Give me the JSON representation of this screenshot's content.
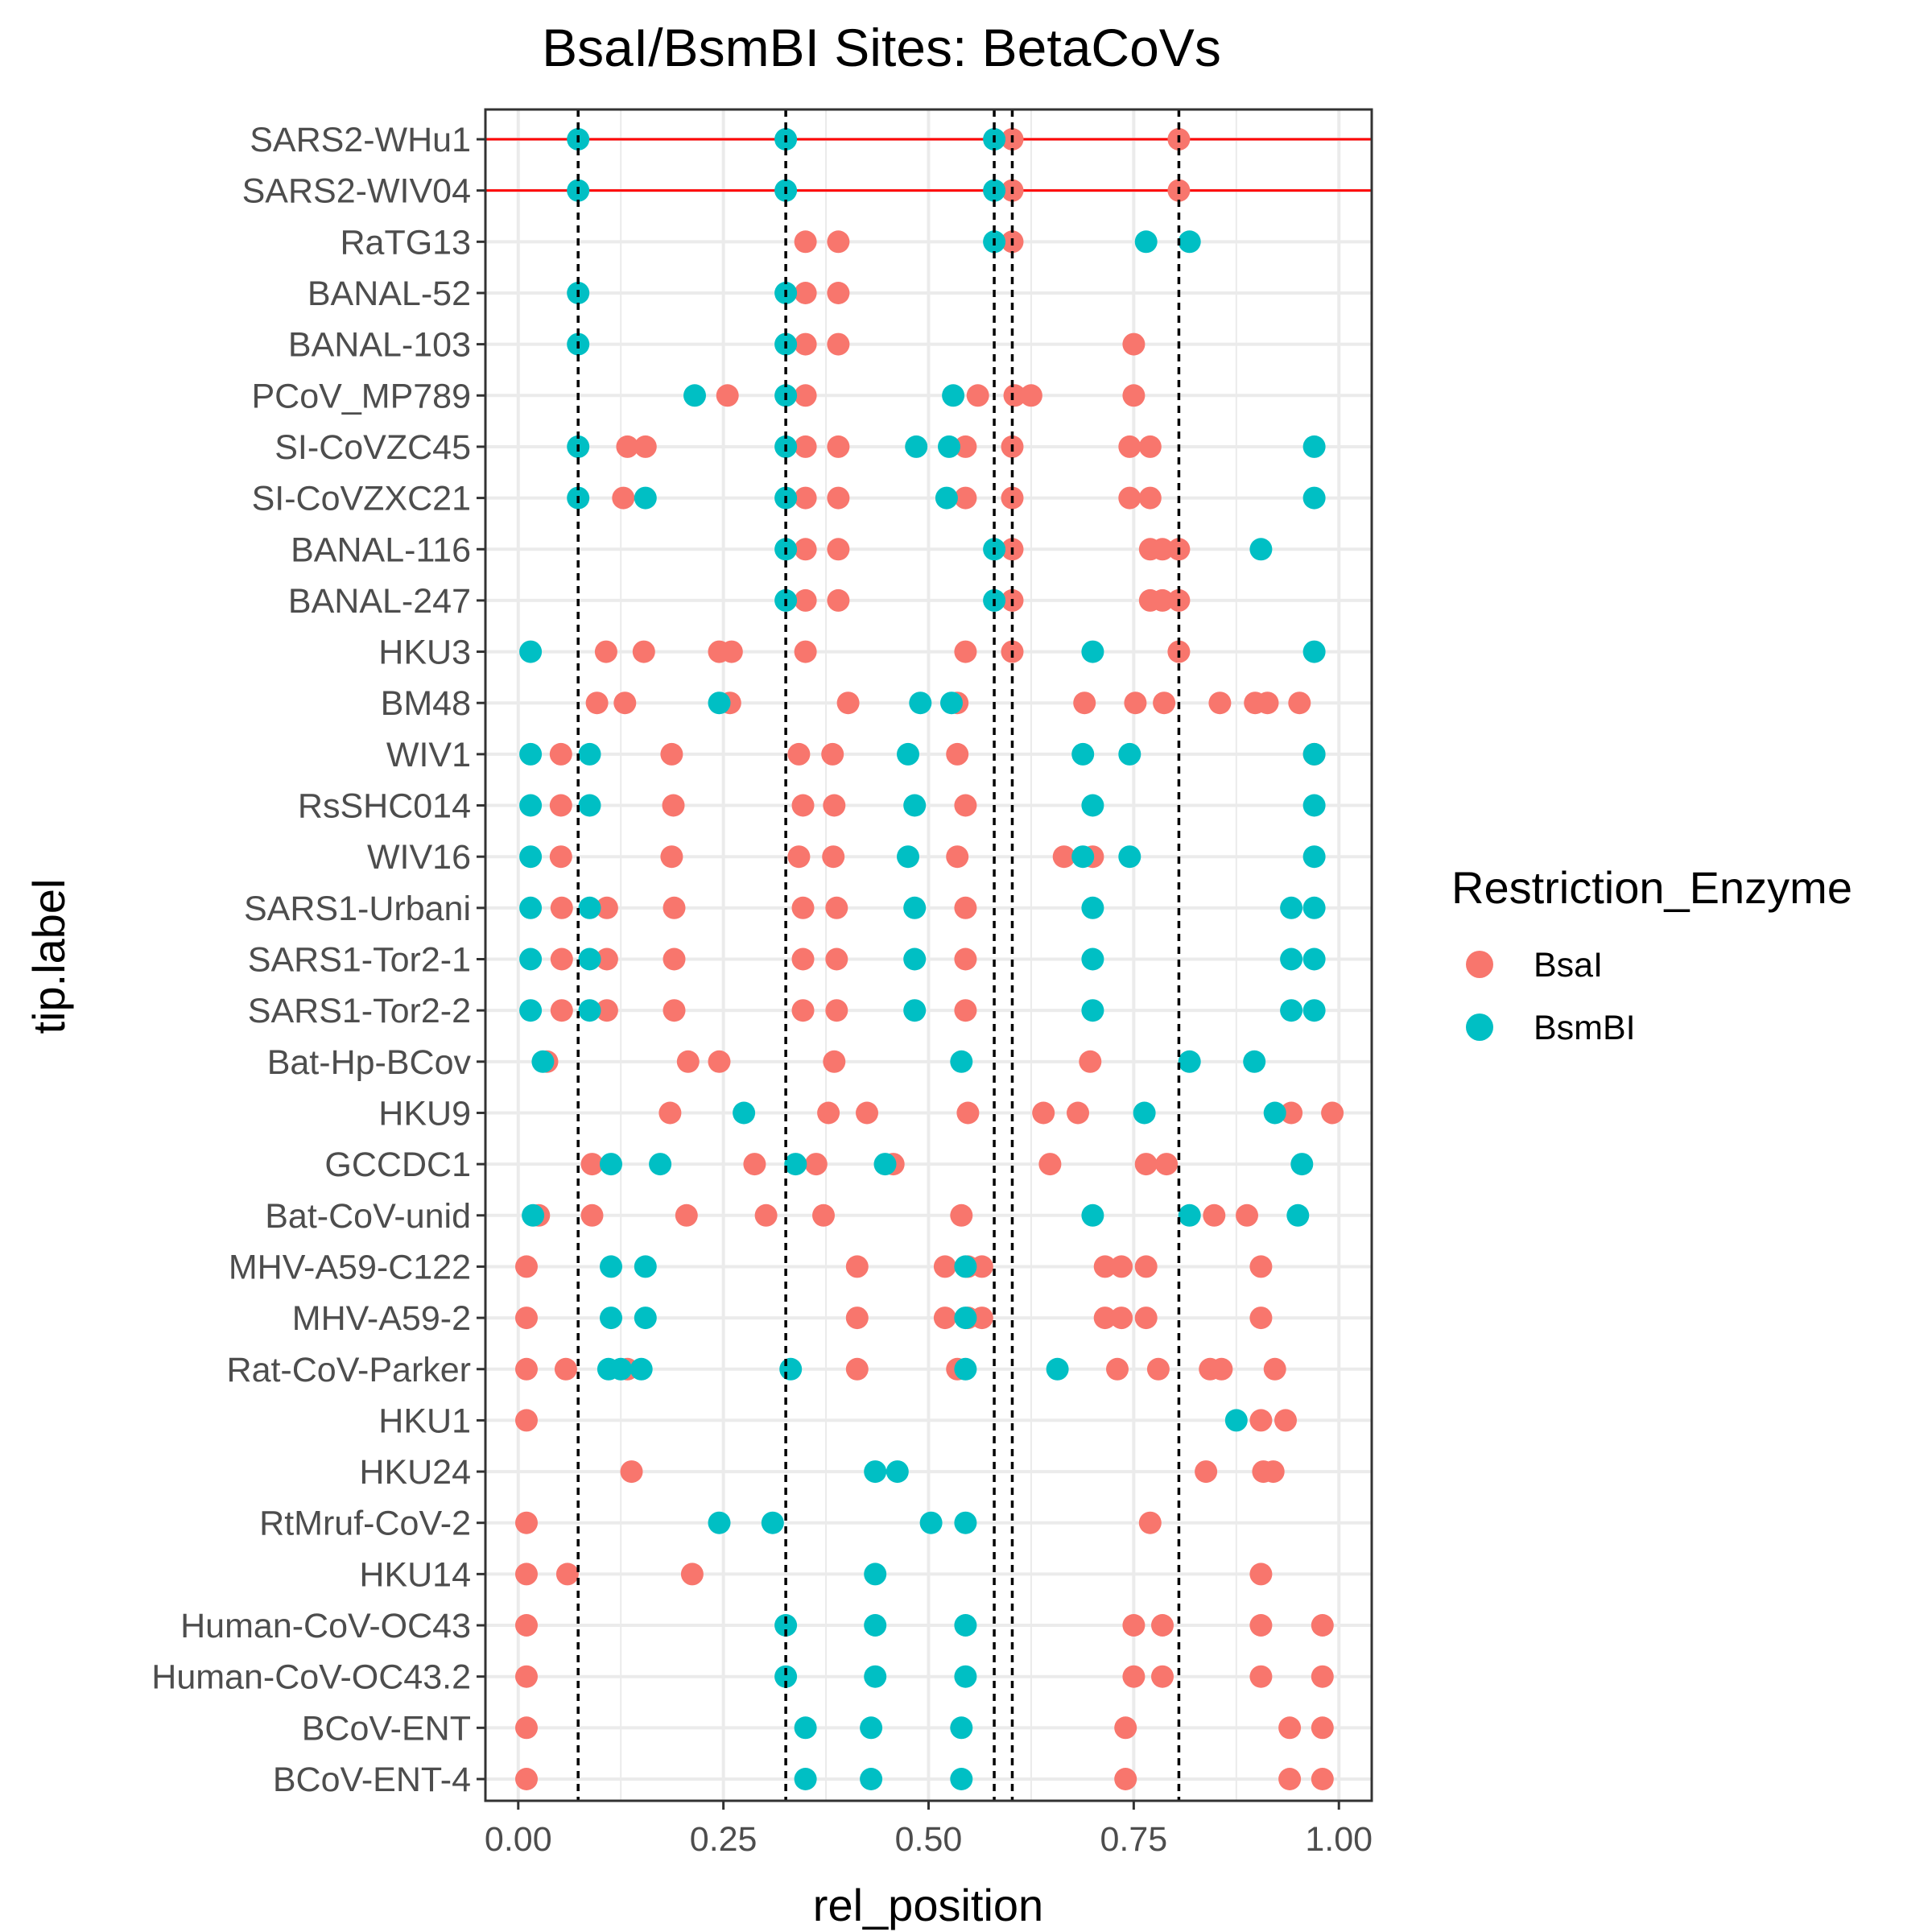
{
  "chart_data": {
    "type": "scatter",
    "title": "BsaI/BsmBI Sites: BetaCoVs",
    "xlabel": "rel_position",
    "ylabel": "tip.label",
    "xlim": [
      -0.04,
      1.04
    ],
    "x_ticks": [
      "0.00",
      "0.25",
      "0.50",
      "0.75",
      "1.00"
    ],
    "grid": true,
    "legend": {
      "title": "Restriction_Enzyme",
      "position": "right"
    },
    "colors": {
      "BsaI": "#F8766D",
      "BsmBI": "#00BFC4",
      "highlight_line": "#FF0000",
      "reference_line": "#000000"
    },
    "reference_lines_x": [
      0.073,
      0.326,
      0.58,
      0.602,
      0.805
    ],
    "highlighted_rows": [
      "SARS2-WHu1",
      "SARS2-WIV04"
    ],
    "categories": [
      "SARS2-WHu1",
      "SARS2-WIV04",
      "RaTG13",
      "BANAL-52",
      "BANAL-103",
      "PCoV_MP789",
      "SI-CoVZC45",
      "SI-CoVZXC21",
      "BANAL-116",
      "BANAL-247",
      "HKU3",
      "BM48",
      "WIV1",
      "RsSHC014",
      "WIV16",
      "SARS1-Urbani",
      "SARS1-Tor2-1",
      "SARS1-Tor2-2",
      "Bat-Hp-BCov",
      "HKU9",
      "GCCDC1",
      "Bat-CoV-unid",
      "MHV-A59-C122",
      "MHV-A59-2",
      "Rat-CoV-Parker",
      "HKU1",
      "HKU24",
      "RtMruf-CoV-2",
      "HKU14",
      "Human-CoV-OC43",
      "Human-CoV-OC43.2",
      "BCoV-ENT",
      "BCoV-ENT-4"
    ],
    "series": [
      {
        "name": "BsaI",
        "points": {
          "SARS2-WHu1": [
            0.602,
            0.805
          ],
          "SARS2-WIV04": [
            0.602,
            0.805
          ],
          "RaTG13": [
            0.35,
            0.39,
            0.602
          ],
          "BANAL-52": [
            0.35,
            0.39
          ],
          "BANAL-103": [
            0.35,
            0.39,
            0.75
          ],
          "PCoV_MP789": [
            0.255,
            0.35,
            0.56,
            0.605,
            0.625,
            0.75
          ],
          "SI-CoVZC45": [
            0.133,
            0.155,
            0.35,
            0.39,
            0.545,
            0.602,
            0.745,
            0.77
          ],
          "SI-CoVZXC21": [
            0.128,
            0.35,
            0.39,
            0.545,
            0.602,
            0.745,
            0.77
          ],
          "BANAL-116": [
            0.35,
            0.39,
            0.602,
            0.77,
            0.785,
            0.805
          ],
          "BANAL-247": [
            0.35,
            0.39,
            0.602,
            0.77,
            0.785,
            0.805
          ],
          "HKU3": [
            0.107,
            0.153,
            0.245,
            0.26,
            0.35,
            0.545,
            0.602,
            0.805
          ],
          "BM48": [
            0.096,
            0.13,
            0.258,
            0.402,
            0.535,
            0.69,
            0.752,
            0.787,
            0.855,
            0.898,
            0.913,
            0.952
          ],
          "WIV1": [
            0.052,
            0.187,
            0.342,
            0.383,
            0.535,
            0.97
          ],
          "RsSHC014": [
            0.052,
            0.189,
            0.347,
            0.385,
            0.545
          ],
          "WIV16": [
            0.052,
            0.187,
            0.342,
            0.384,
            0.535,
            0.665,
            0.7
          ],
          "SARS1-Urbani": [
            0.053,
            0.108,
            0.19,
            0.347,
            0.388,
            0.545
          ],
          "SARS1-Tor2-1": [
            0.053,
            0.108,
            0.19,
            0.347,
            0.388,
            0.545
          ],
          "SARS1-Tor2-2": [
            0.053,
            0.108,
            0.19,
            0.347,
            0.388,
            0.545
          ],
          "Bat-Hp-BCov": [
            0.035,
            0.207,
            0.245,
            0.385,
            0.697
          ],
          "HKU9": [
            0.185,
            0.378,
            0.425,
            0.548,
            0.64,
            0.682,
            0.942,
            0.992
          ],
          "GCCDC1": [
            0.09,
            0.288,
            0.363,
            0.457,
            0.648,
            0.765,
            0.79
          ],
          "Bat-CoV-unid": [
            0.025,
            0.09,
            0.205,
            0.302,
            0.372,
            0.54,
            0.848,
            0.888
          ],
          "MHV-A59-C122": [
            0.01,
            0.413,
            0.52,
            0.548,
            0.565,
            0.715,
            0.735,
            0.765,
            0.905
          ],
          "MHV-A59-2": [
            0.01,
            0.413,
            0.52,
            0.548,
            0.565,
            0.715,
            0.735,
            0.765,
            0.905
          ],
          "Rat-CoV-Parker": [
            0.01,
            0.058,
            0.133,
            0.413,
            0.535,
            0.73,
            0.78,
            0.843,
            0.857,
            0.922
          ],
          "HKU1": [
            0.01,
            0.905,
            0.935
          ],
          "HKU24": [
            0.138,
            0.838,
            0.908,
            0.92
          ],
          "RtMruf-CoV-2": [
            0.01,
            0.77
          ],
          "HKU14": [
            0.01,
            0.06,
            0.212,
            0.905
          ],
          "Human-CoV-OC43": [
            0.01,
            0.75,
            0.785,
            0.905,
            0.98
          ],
          "Human-CoV-OC43.2": [
            0.01,
            0.75,
            0.785,
            0.905,
            0.98
          ],
          "BCoV-ENT": [
            0.01,
            0.74,
            0.94,
            0.98
          ],
          "BCoV-ENT-4": [
            0.01,
            0.74,
            0.94,
            0.98
          ]
        }
      },
      {
        "name": "BsmBI",
        "points": {
          "SARS2-WHu1": [
            0.073,
            0.326,
            0.58
          ],
          "SARS2-WIV04": [
            0.073,
            0.326,
            0.58
          ],
          "RaTG13": [
            0.58,
            0.765,
            0.818
          ],
          "BANAL-52": [
            0.073,
            0.326
          ],
          "BANAL-103": [
            0.073,
            0.326
          ],
          "PCoV_MP789": [
            0.215,
            0.326,
            0.53
          ],
          "SI-CoVZC45": [
            0.073,
            0.326,
            0.485,
            0.525,
            0.97
          ],
          "SI-CoVZXC21": [
            0.073,
            0.155,
            0.326,
            0.522,
            0.97
          ],
          "BANAL-116": [
            0.326,
            0.58,
            0.905
          ],
          "BANAL-247": [
            0.326,
            0.58
          ],
          "HKU3": [
            0.015,
            0.7,
            0.97
          ],
          "BM48": [
            0.245,
            0.49,
            0.528
          ],
          "WIV1": [
            0.015,
            0.087,
            0.475,
            0.688,
            0.745,
            0.97
          ],
          "RsSHC014": [
            0.015,
            0.087,
            0.483,
            0.7,
            0.97
          ],
          "WIV16": [
            0.015,
            0.475,
            0.688,
            0.745,
            0.97
          ],
          "SARS1-Urbani": [
            0.015,
            0.087,
            0.483,
            0.7,
            0.942,
            0.97
          ],
          "SARS1-Tor2-1": [
            0.015,
            0.087,
            0.483,
            0.7,
            0.942,
            0.97
          ],
          "SARS1-Tor2-2": [
            0.015,
            0.087,
            0.483,
            0.7,
            0.942,
            0.97
          ],
          "Bat-Hp-BCov": [
            0.03,
            0.54,
            0.818,
            0.897
          ],
          "HKU9": [
            0.275,
            0.763,
            0.922
          ],
          "GCCDC1": [
            0.113,
            0.173,
            0.338,
            0.447,
            0.955
          ],
          "Bat-CoV-unid": [
            0.018,
            0.7,
            0.818,
            0.95
          ],
          "MHV-A59-C122": [
            0.113,
            0.155,
            0.545
          ],
          "MHV-A59-2": [
            0.113,
            0.155,
            0.545
          ],
          "Rat-CoV-Parker": [
            0.11,
            0.125,
            0.15,
            0.332,
            0.545,
            0.657
          ],
          "HKU1": [
            0.875
          ],
          "HKU24": [
            0.435,
            0.462
          ],
          "RtMruf-CoV-2": [
            0.245,
            0.31,
            0.503,
            0.545
          ],
          "HKU14": [
            0.435
          ],
          "Human-CoV-OC43": [
            0.326,
            0.435,
            0.545
          ],
          "Human-CoV-OC43.2": [
            0.326,
            0.435,
            0.545
          ],
          "BCoV-ENT": [
            0.35,
            0.43,
            0.54
          ],
          "BCoV-ENT-4": [
            0.35,
            0.43,
            0.54
          ]
        }
      }
    ]
  }
}
